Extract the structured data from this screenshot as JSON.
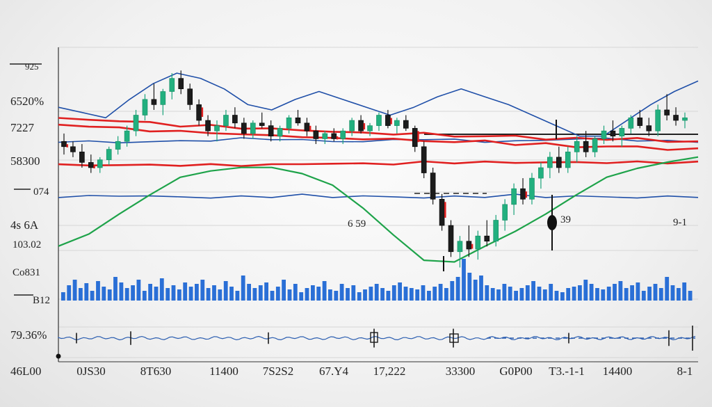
{
  "chart_data": {
    "type": "candlestick",
    "y_tick_labels": [
      "925",
      "6520%",
      "7227",
      "58300",
      "074",
      "4s 6A",
      "103.02",
      "Co831",
      "B12",
      "79.36%",
      "46L00"
    ],
    "x_tick_labels": [
      "0JS30",
      "8T630",
      "11400",
      "7S2S2",
      "67.Y4",
      "17,222",
      "33300",
      "G0P00",
      "T3.-1-1",
      "14400",
      "8-1"
    ],
    "annotations": [
      "6 59",
      "39",
      "9-1"
    ],
    "candles": [
      {
        "o": 7.0,
        "h": 7.3,
        "l": 6.5,
        "c": 6.8
      },
      {
        "o": 6.8,
        "h": 7.0,
        "l": 6.4,
        "c": 6.6
      },
      {
        "o": 6.6,
        "h": 6.9,
        "l": 6.0,
        "c": 6.2
      },
      {
        "o": 6.2,
        "h": 6.5,
        "l": 5.8,
        "c": 6.0
      },
      {
        "o": 6.0,
        "h": 6.4,
        "l": 5.8,
        "c": 6.3
      },
      {
        "o": 6.3,
        "h": 6.8,
        "l": 6.1,
        "c": 6.7
      },
      {
        "o": 6.7,
        "h": 7.2,
        "l": 6.5,
        "c": 7.0
      },
      {
        "o": 7.0,
        "h": 7.6,
        "l": 6.8,
        "c": 7.4
      },
      {
        "o": 7.4,
        "h": 8.2,
        "l": 7.2,
        "c": 8.0
      },
      {
        "o": 8.0,
        "h": 8.8,
        "l": 7.8,
        "c": 8.6
      },
      {
        "o": 8.6,
        "h": 9.2,
        "l": 8.2,
        "c": 8.4
      },
      {
        "o": 8.4,
        "h": 9.0,
        "l": 8.0,
        "c": 8.9
      },
      {
        "o": 8.9,
        "h": 9.6,
        "l": 8.6,
        "c": 9.4
      },
      {
        "o": 9.4,
        "h": 9.7,
        "l": 8.8,
        "c": 9.0
      },
      {
        "o": 9.0,
        "h": 9.2,
        "l": 8.2,
        "c": 8.4
      },
      {
        "o": 8.4,
        "h": 8.6,
        "l": 7.6,
        "c": 7.8
      },
      {
        "o": 7.8,
        "h": 8.0,
        "l": 7.2,
        "c": 7.4
      },
      {
        "o": 7.4,
        "h": 7.8,
        "l": 7.0,
        "c": 7.6
      },
      {
        "o": 7.6,
        "h": 8.2,
        "l": 7.4,
        "c": 8.0
      },
      {
        "o": 8.0,
        "h": 8.3,
        "l": 7.5,
        "c": 7.7
      },
      {
        "o": 7.7,
        "h": 7.9,
        "l": 7.1,
        "c": 7.3
      },
      {
        "o": 7.3,
        "h": 7.8,
        "l": 7.1,
        "c": 7.7
      },
      {
        "o": 7.7,
        "h": 8.1,
        "l": 7.5,
        "c": 7.6
      },
      {
        "o": 7.6,
        "h": 7.8,
        "l": 7.0,
        "c": 7.2
      },
      {
        "o": 7.2,
        "h": 7.6,
        "l": 7.0,
        "c": 7.5
      },
      {
        "o": 7.5,
        "h": 8.0,
        "l": 7.3,
        "c": 7.9
      },
      {
        "o": 7.9,
        "h": 8.2,
        "l": 7.6,
        "c": 7.7
      },
      {
        "o": 7.7,
        "h": 7.9,
        "l": 7.2,
        "c": 7.4
      },
      {
        "o": 7.4,
        "h": 7.6,
        "l": 6.9,
        "c": 7.1
      },
      {
        "o": 7.1,
        "h": 7.4,
        "l": 6.9,
        "c": 7.3
      },
      {
        "o": 7.3,
        "h": 7.5,
        "l": 7.0,
        "c": 7.1
      },
      {
        "o": 7.1,
        "h": 7.5,
        "l": 6.9,
        "c": 7.4
      },
      {
        "o": 7.4,
        "h": 7.9,
        "l": 7.2,
        "c": 7.8
      },
      {
        "o": 7.8,
        "h": 8.0,
        "l": 7.3,
        "c": 7.4
      },
      {
        "o": 7.4,
        "h": 7.7,
        "l": 7.2,
        "c": 7.6
      },
      {
        "o": 7.6,
        "h": 8.1,
        "l": 7.4,
        "c": 8.0
      },
      {
        "o": 8.0,
        "h": 8.2,
        "l": 7.5,
        "c": 7.6
      },
      {
        "o": 7.6,
        "h": 7.9,
        "l": 7.3,
        "c": 7.8
      },
      {
        "o": 7.8,
        "h": 8.0,
        "l": 7.4,
        "c": 7.5
      },
      {
        "o": 7.5,
        "h": 7.6,
        "l": 6.6,
        "c": 6.8
      },
      {
        "o": 6.8,
        "h": 7.0,
        "l": 5.6,
        "c": 5.8
      },
      {
        "o": 5.8,
        "h": 6.0,
        "l": 4.6,
        "c": 4.8
      },
      {
        "o": 4.8,
        "h": 5.0,
        "l": 3.6,
        "c": 3.8
      },
      {
        "o": 3.8,
        "h": 4.0,
        "l": 2.6,
        "c": 2.8
      },
      {
        "o": 2.8,
        "h": 3.4,
        "l": 2.2,
        "c": 3.2
      },
      {
        "o": 3.2,
        "h": 3.8,
        "l": 2.6,
        "c": 2.9
      },
      {
        "o": 2.9,
        "h": 3.6,
        "l": 2.5,
        "c": 3.4
      },
      {
        "o": 3.4,
        "h": 4.0,
        "l": 3.0,
        "c": 3.2
      },
      {
        "o": 3.2,
        "h": 4.2,
        "l": 3.0,
        "c": 4.0
      },
      {
        "o": 4.0,
        "h": 4.8,
        "l": 3.6,
        "c": 4.6
      },
      {
        "o": 4.6,
        "h": 5.4,
        "l": 4.2,
        "c": 5.2
      },
      {
        "o": 5.2,
        "h": 5.6,
        "l": 4.6,
        "c": 4.8
      },
      {
        "o": 4.8,
        "h": 5.8,
        "l": 4.6,
        "c": 5.6
      },
      {
        "o": 5.6,
        "h": 6.2,
        "l": 5.2,
        "c": 6.0
      },
      {
        "o": 6.0,
        "h": 6.6,
        "l": 5.6,
        "c": 6.4
      },
      {
        "o": 6.4,
        "h": 6.8,
        "l": 5.8,
        "c": 6.0
      },
      {
        "o": 6.0,
        "h": 6.8,
        "l": 5.8,
        "c": 6.6
      },
      {
        "o": 6.6,
        "h": 7.2,
        "l": 6.2,
        "c": 7.0
      },
      {
        "o": 7.0,
        "h": 7.4,
        "l": 6.4,
        "c": 6.6
      },
      {
        "o": 6.6,
        "h": 7.2,
        "l": 6.4,
        "c": 7.1
      },
      {
        "o": 7.1,
        "h": 7.6,
        "l": 6.9,
        "c": 7.4
      },
      {
        "o": 7.4,
        "h": 7.8,
        "l": 7.0,
        "c": 7.2
      },
      {
        "o": 7.2,
        "h": 7.6,
        "l": 6.8,
        "c": 7.5
      },
      {
        "o": 7.5,
        "h": 8.0,
        "l": 7.3,
        "c": 7.9
      },
      {
        "o": 7.9,
        "h": 8.2,
        "l": 7.5,
        "c": 7.6
      },
      {
        "o": 7.6,
        "h": 7.9,
        "l": 7.2,
        "c": 7.4
      },
      {
        "o": 7.4,
        "h": 8.4,
        "l": 7.2,
        "c": 8.2
      },
      {
        "o": 8.2,
        "h": 8.8,
        "l": 7.8,
        "c": 8.0
      },
      {
        "o": 8.0,
        "h": 8.3,
        "l": 7.6,
        "c": 7.8
      },
      {
        "o": 7.8,
        "h": 8.1,
        "l": 7.5,
        "c": 7.9
      }
    ],
    "lines": [
      {
        "color": "#1f4fa8",
        "values": [
          8.3,
          8.1,
          7.9,
          8.6,
          9.2,
          9.6,
          9.4,
          9.0,
          8.4,
          8.2,
          8.6,
          8.9,
          8.6,
          8.3,
          8.0,
          8.3,
          8.7,
          9.0,
          8.7,
          8.4,
          8.0,
          7.6,
          7.2,
          7.2,
          7.8,
          8.4,
          8.9,
          9.3
        ]
      },
      {
        "color": "#1f4fa8",
        "values": [
          7.0,
          7.0,
          6.95,
          7.0,
          7.0,
          7.05,
          7.1,
          7.1,
          7.05,
          7.0,
          7.0,
          7.05,
          7.1,
          7.05,
          7.0,
          7.0,
          7.05,
          7.1,
          7.1,
          7.05,
          7.0,
          7.0
        ]
      },
      {
        "color": "#1f4fa8",
        "values": [
          4.9,
          4.9,
          4.95,
          4.9,
          4.9,
          4.85,
          4.9,
          4.9,
          4.95,
          4.9,
          4.9,
          4.9,
          4.85,
          4.9,
          4.9,
          4.95,
          4.9,
          4.9,
          4.9,
          4.85,
          4.9,
          4.9
        ]
      },
      {
        "color": "#e02020",
        "values": [
          7.9,
          7.8,
          7.8,
          7.7,
          7.6,
          7.6,
          7.5,
          7.5,
          7.4,
          7.4,
          7.3,
          7.3,
          7.3,
          7.2,
          7.2,
          7.2,
          7.1,
          7.1,
          7.1,
          7.1,
          7.0,
          7.0
        ]
      },
      {
        "color": "#e02020",
        "values": [
          6.1,
          6.1,
          6.1,
          6.1,
          6.1,
          6.1,
          6.1,
          6.1,
          6.15,
          6.15,
          6.15,
          6.15,
          6.2,
          6.2,
          6.2,
          6.2,
          6.2,
          6.2,
          6.2,
          6.2,
          6.2,
          6.2
        ]
      },
      {
        "color": "#e02020",
        "values": [
          7.6,
          7.6,
          7.5,
          7.4,
          7.4,
          7.3,
          7.3,
          7.2,
          7.2,
          7.1,
          7.1,
          7.1,
          7.0,
          7.0,
          7.0,
          6.9,
          6.9,
          6.8,
          6.8,
          6.8,
          6.7,
          6.7
        ]
      },
      {
        "color": "#1ea34a",
        "values": [
          3.0,
          3.5,
          4.2,
          5.0,
          5.6,
          5.9,
          6.0,
          6.0,
          5.8,
          5.3,
          4.5,
          3.4,
          2.5,
          2.4,
          3.0,
          3.6,
          4.2,
          5.0,
          5.6,
          6.0,
          6.2,
          6.4
        ]
      }
    ],
    "volume": [
      12,
      22,
      30,
      18,
      25,
      14,
      28,
      20,
      16,
      34,
      26,
      18,
      22,
      30,
      14,
      24,
      20,
      32,
      18,
      22,
      16,
      26,
      20,
      24,
      30,
      18,
      22,
      16,
      28,
      20,
      14,
      36,
      24,
      18,
      22,
      26,
      14,
      20,
      30,
      16,
      24,
      12,
      18,
      22,
      20,
      28,
      16,
      14,
      24,
      18,
      22,
      12,
      16,
      20,
      24,
      18,
      14,
      22,
      26,
      20,
      18,
      16,
      22,
      14,
      20,
      24,
      18,
      28,
      34,
      60,
      40,
      30,
      36,
      22,
      18,
      16,
      24,
      20,
      14,
      18,
      22,
      28,
      20,
      16,
      24,
      14,
      12,
      18,
      20,
      22,
      30,
      24,
      18,
      16,
      20,
      24,
      28,
      18,
      22,
      26,
      14,
      20,
      24,
      18,
      34,
      22,
      18,
      26,
      14
    ],
    "oscillator_spikes": [
      0.1,
      0.25,
      0.15,
      0.5,
      0.5,
      0.1,
      0.35,
      0.8
    ]
  }
}
